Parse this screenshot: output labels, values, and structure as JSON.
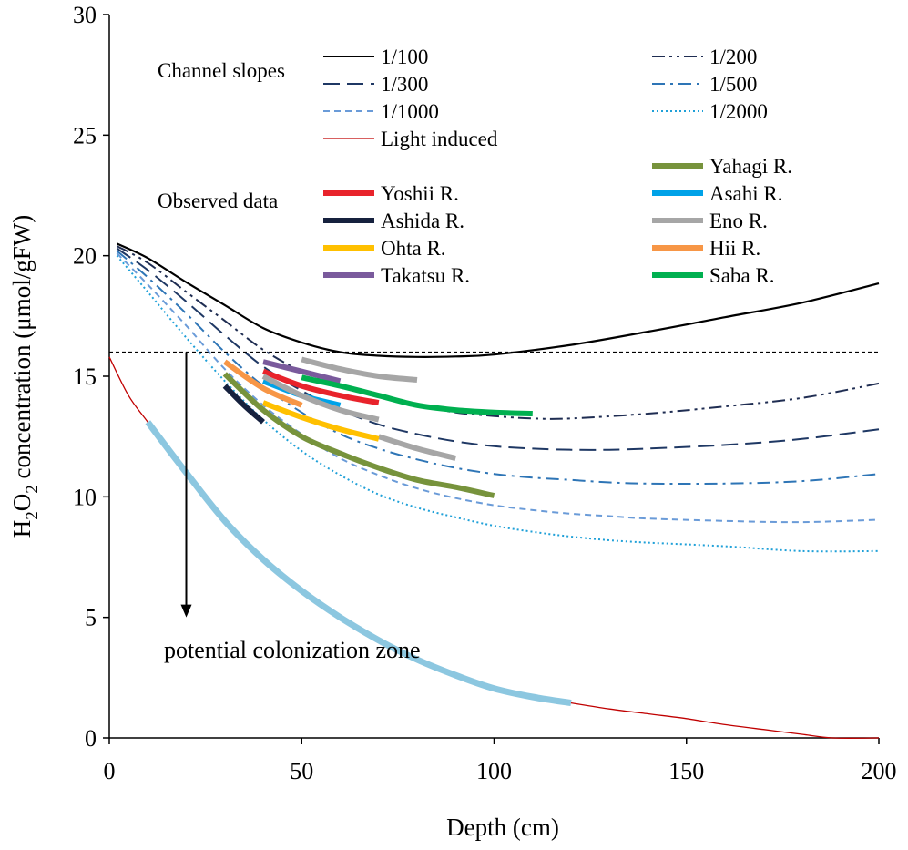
{
  "chart_data": {
    "type": "line",
    "xlabel": "Depth (cm)",
    "ylabel_parts": [
      "H",
      "2",
      "O",
      "2",
      " concentration (μmol/gFW)"
    ],
    "xlim": [
      0,
      200
    ],
    "ylim": [
      0,
      30
    ],
    "xticks": [
      0,
      50,
      100,
      150,
      200
    ],
    "yticks": [
      0,
      5,
      10,
      15,
      20,
      25,
      30
    ],
    "grid": false,
    "legend_groups": {
      "slopes": "Channel slopes",
      "observed": "Observed data"
    },
    "slope_series": [
      {
        "name": "1/100",
        "color": "#000000",
        "dash": "solid",
        "x": [
          2,
          10,
          20,
          30,
          40,
          50,
          60,
          70,
          80,
          90,
          100,
          120,
          140,
          160,
          180,
          200
        ],
        "y": [
          20.5,
          19.9,
          18.9,
          17.95,
          17.0,
          16.4,
          16.0,
          15.85,
          15.8,
          15.82,
          15.9,
          16.3,
          16.85,
          17.45,
          18.05,
          18.85
        ]
      },
      {
        "name": "1/200",
        "color": "#1f2d52",
        "dash": "dashdotdot",
        "x": [
          2,
          10,
          20,
          30,
          40,
          50,
          60,
          70,
          80,
          90,
          100,
          110,
          120,
          140,
          160,
          180,
          200
        ],
        "y": [
          20.4,
          19.7,
          18.5,
          17.3,
          16.1,
          15.2,
          14.6,
          14.15,
          13.8,
          13.5,
          13.35,
          13.25,
          13.25,
          13.45,
          13.75,
          14.1,
          14.7
        ]
      },
      {
        "name": "1/300",
        "color": "#1f3864",
        "dash": "longdash",
        "x": [
          2,
          10,
          20,
          30,
          40,
          50,
          60,
          70,
          80,
          90,
          100,
          110,
          120,
          130,
          140,
          160,
          180,
          200
        ],
        "y": [
          20.3,
          19.4,
          18.1,
          16.7,
          15.4,
          14.4,
          13.6,
          13.0,
          12.6,
          12.3,
          12.1,
          12.0,
          11.95,
          11.95,
          12.0,
          12.15,
          12.4,
          12.8
        ]
      },
      {
        "name": "1/500",
        "color": "#2e75b6",
        "dash": "dashdot",
        "x": [
          2,
          10,
          20,
          30,
          40,
          50,
          60,
          70,
          80,
          90,
          100,
          110,
          120,
          130,
          140,
          160,
          180,
          200
        ],
        "y": [
          20.2,
          19.1,
          17.6,
          16.0,
          14.6,
          13.5,
          12.6,
          12.0,
          11.55,
          11.2,
          10.95,
          10.8,
          10.7,
          10.6,
          10.55,
          10.55,
          10.65,
          10.95
        ]
      },
      {
        "name": "1/1000",
        "color": "#6a9bd8",
        "dash": "shortdash",
        "x": [
          2,
          10,
          20,
          30,
          40,
          50,
          60,
          70,
          80,
          90,
          100,
          110,
          120,
          130,
          140,
          160,
          180,
          200
        ],
        "y": [
          20.1,
          18.8,
          17.1,
          15.3,
          13.8,
          12.6,
          11.6,
          10.9,
          10.35,
          9.95,
          9.65,
          9.45,
          9.3,
          9.2,
          9.1,
          9.0,
          8.95,
          9.05
        ]
      },
      {
        "name": "1/2000",
        "color": "#1fa0d8",
        "dash": "dotted",
        "x": [
          2,
          10,
          20,
          30,
          40,
          50,
          60,
          70,
          80,
          90,
          100,
          110,
          120,
          130,
          140,
          160,
          180,
          200
        ],
        "y": [
          20.0,
          18.5,
          16.6,
          14.8,
          13.2,
          11.9,
          10.9,
          10.1,
          9.55,
          9.15,
          8.8,
          8.55,
          8.35,
          8.2,
          8.1,
          7.95,
          7.75,
          7.75
        ]
      }
    ],
    "light_induced": {
      "name": "Light induced",
      "color": "#c00000",
      "x": [
        0,
        5,
        10,
        20,
        30,
        40,
        50,
        60,
        70,
        80,
        90,
        100,
        110,
        120,
        130,
        140,
        150,
        160,
        170,
        180,
        188,
        200
      ],
      "y": [
        15.8,
        14.2,
        13.1,
        11.0,
        9.0,
        7.4,
        6.1,
        5.0,
        4.05,
        3.25,
        2.6,
        2.05,
        1.7,
        1.45,
        1.2,
        1.0,
        0.8,
        0.55,
        0.35,
        0.15,
        0.0,
        0.0
      ]
    },
    "potential_zone": {
      "color": "#8cc7e0",
      "x": [
        10,
        20,
        30,
        40,
        50,
        60,
        70,
        80,
        90,
        100,
        110,
        120
      ],
      "y": [
        13.1,
        11.0,
        9.0,
        7.4,
        6.1,
        5.0,
        4.05,
        3.25,
        2.6,
        2.05,
        1.7,
        1.45
      ]
    },
    "observed_series": [
      {
        "name": "Yahagi R.",
        "color": "#77933c",
        "x": [
          30,
          40,
          50,
          60,
          70,
          80,
          90,
          100
        ],
        "y": [
          15.1,
          13.6,
          12.5,
          11.8,
          11.2,
          10.7,
          10.4,
          10.05
        ]
      },
      {
        "name": "Yoshii R.",
        "color": "#e8232b",
        "x": [
          40,
          50,
          60,
          70
        ],
        "y": [
          15.2,
          14.6,
          14.2,
          13.9
        ]
      },
      {
        "name": "Asahi R.",
        "color": "#00a2e8",
        "x": [
          40,
          50,
          60
        ],
        "y": [
          14.8,
          14.2,
          13.8
        ]
      },
      {
        "name": "Ashida R.",
        "color": "#16213e",
        "x": [
          30,
          35,
          40
        ],
        "y": [
          14.6,
          13.8,
          13.1
        ]
      },
      {
        "name": "Eno R.",
        "color": "#a6a6a6",
        "x": [
          50,
          60,
          70,
          80
        ],
        "y": [
          15.7,
          15.3,
          15.0,
          14.85
        ],
        "extra": [
          {
            "x": [
              40,
              50,
              60,
              70
            ],
            "y": [
              15.0,
              14.2,
              13.6,
              13.2
            ]
          },
          {
            "x": [
              70,
              80,
              90
            ],
            "y": [
              12.5,
              12.0,
              11.6
            ]
          }
        ]
      },
      {
        "name": "Ohta R.",
        "color": "#ffc000",
        "x": [
          40,
          50,
          60,
          70
        ],
        "y": [
          13.9,
          13.3,
          12.8,
          12.4
        ]
      },
      {
        "name": "Hii R.",
        "color": "#f79646",
        "x": [
          30,
          40,
          50
        ],
        "y": [
          15.6,
          14.5,
          13.8
        ]
      },
      {
        "name": "Takatsu R.",
        "color": "#7a5a9c",
        "x": [
          40,
          50,
          60
        ],
        "y": [
          15.6,
          15.2,
          14.8
        ]
      },
      {
        "name": "Saba R.",
        "color": "#00b050",
        "x": [
          50,
          60,
          70,
          80,
          90,
          100,
          110
        ],
        "y": [
          14.95,
          14.6,
          14.2,
          13.8,
          13.6,
          13.5,
          13.45
        ]
      }
    ],
    "threshold": {
      "y": 16
    },
    "arrow": {
      "x": 20,
      "y_from": 16,
      "y_to": 5
    },
    "annotation": "potential colonization zone"
  }
}
